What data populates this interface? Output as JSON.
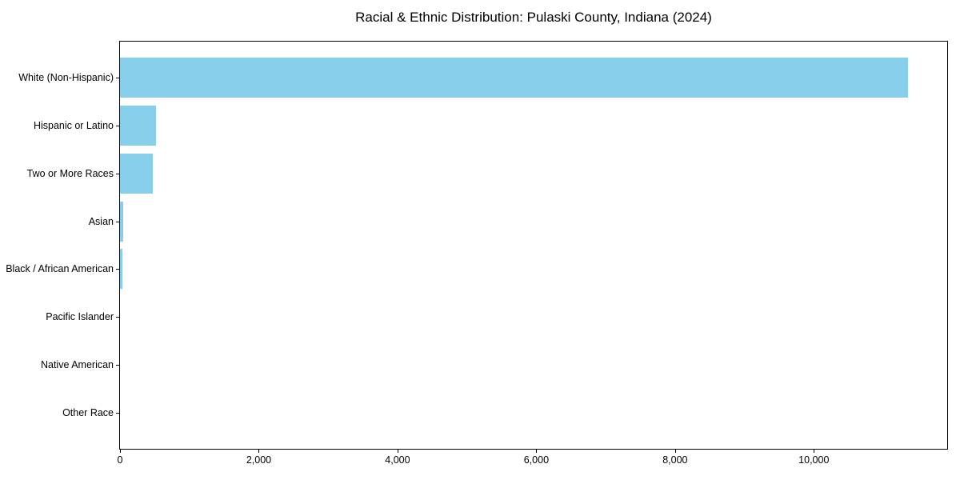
{
  "figure": {
    "background": "#ffffff"
  },
  "chart_data": {
    "type": "bar",
    "orientation": "horizontal",
    "title": "Racial & Ethnic Distribution: Pulaski County, Indiana (2024)",
    "categories": [
      "White (Non-Hispanic)",
      "Hispanic or Latino",
      "Two or More Races",
      "Asian",
      "Black / African American",
      "Pacific Islander",
      "Native American",
      "Other Race"
    ],
    "values": [
      11354,
      520,
      470,
      46,
      33,
      0,
      0,
      0
    ],
    "xlabel": "",
    "ylabel": "",
    "xlim": [
      0,
      11922
    ],
    "x_ticks": [
      0,
      2000,
      4000,
      6000,
      8000,
      10000
    ],
    "x_tick_labels": [
      "0",
      "2,000",
      "4,000",
      "6,000",
      "8,000",
      "10,000"
    ],
    "bar_color": "#87ceeb",
    "axis_color": "#000000",
    "text_color": "#000000",
    "grid": false,
    "legend": "none"
  }
}
